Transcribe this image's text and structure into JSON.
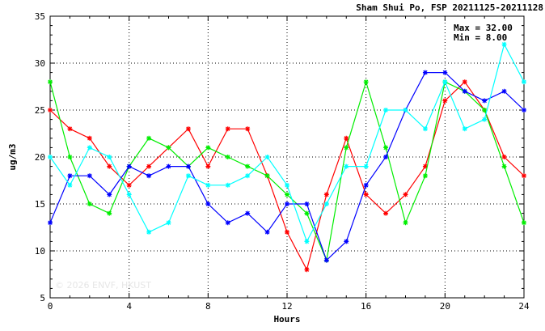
{
  "chart_data": {
    "type": "line",
    "title": "Sham Shui Po, FSP 20211125-20211128",
    "xlabel": "Hours",
    "ylabel": "ug/m3",
    "xlim": [
      0,
      24
    ],
    "ylim": [
      5,
      35
    ],
    "xticks": [
      "0",
      "4",
      "8",
      "12",
      "16",
      "20",
      "24"
    ],
    "yticks": [
      "5",
      "10",
      "15",
      "20",
      "25",
      "30",
      "35"
    ],
    "grid": true,
    "annotations": {
      "max": "Max = 32.00",
      "min": "Min =  8.00"
    },
    "watermark": "© 2026 ENVF, HKUST",
    "x": [
      0,
      1,
      2,
      3,
      4,
      5,
      6,
      7,
      8,
      9,
      10,
      11,
      12,
      13,
      14,
      15,
      16,
      17,
      18,
      19,
      20,
      21,
      22,
      23,
      24
    ],
    "series": [
      {
        "color": "#ff0000",
        "values": [
          25,
          23,
          22,
          19,
          17,
          19,
          21,
          23,
          19,
          23,
          23,
          18,
          12,
          8,
          16,
          22,
          16,
          14,
          16,
          19,
          26,
          28,
          25,
          20,
          18
        ]
      },
      {
        "color": "#00ee00",
        "values": [
          28,
          20,
          15,
          14,
          19,
          22,
          21,
          19,
          21,
          20,
          19,
          18,
          16,
          14,
          9,
          21,
          28,
          21,
          13,
          18,
          28,
          27,
          25,
          19,
          13
        ]
      },
      {
        "color": "#0000ff",
        "values": [
          13,
          18,
          18,
          16,
          19,
          18,
          19,
          19,
          15,
          13,
          14,
          12,
          15,
          15,
          9,
          11,
          17,
          20,
          25,
          29,
          29,
          27,
          26,
          27,
          25
        ]
      },
      {
        "color": "#00ffff",
        "values": [
          20,
          17,
          21,
          20,
          16,
          12,
          13,
          18,
          17,
          17,
          18,
          20,
          17,
          11,
          15,
          19,
          19,
          25,
          25,
          23,
          28,
          23,
          24,
          32,
          28
        ]
      }
    ]
  }
}
